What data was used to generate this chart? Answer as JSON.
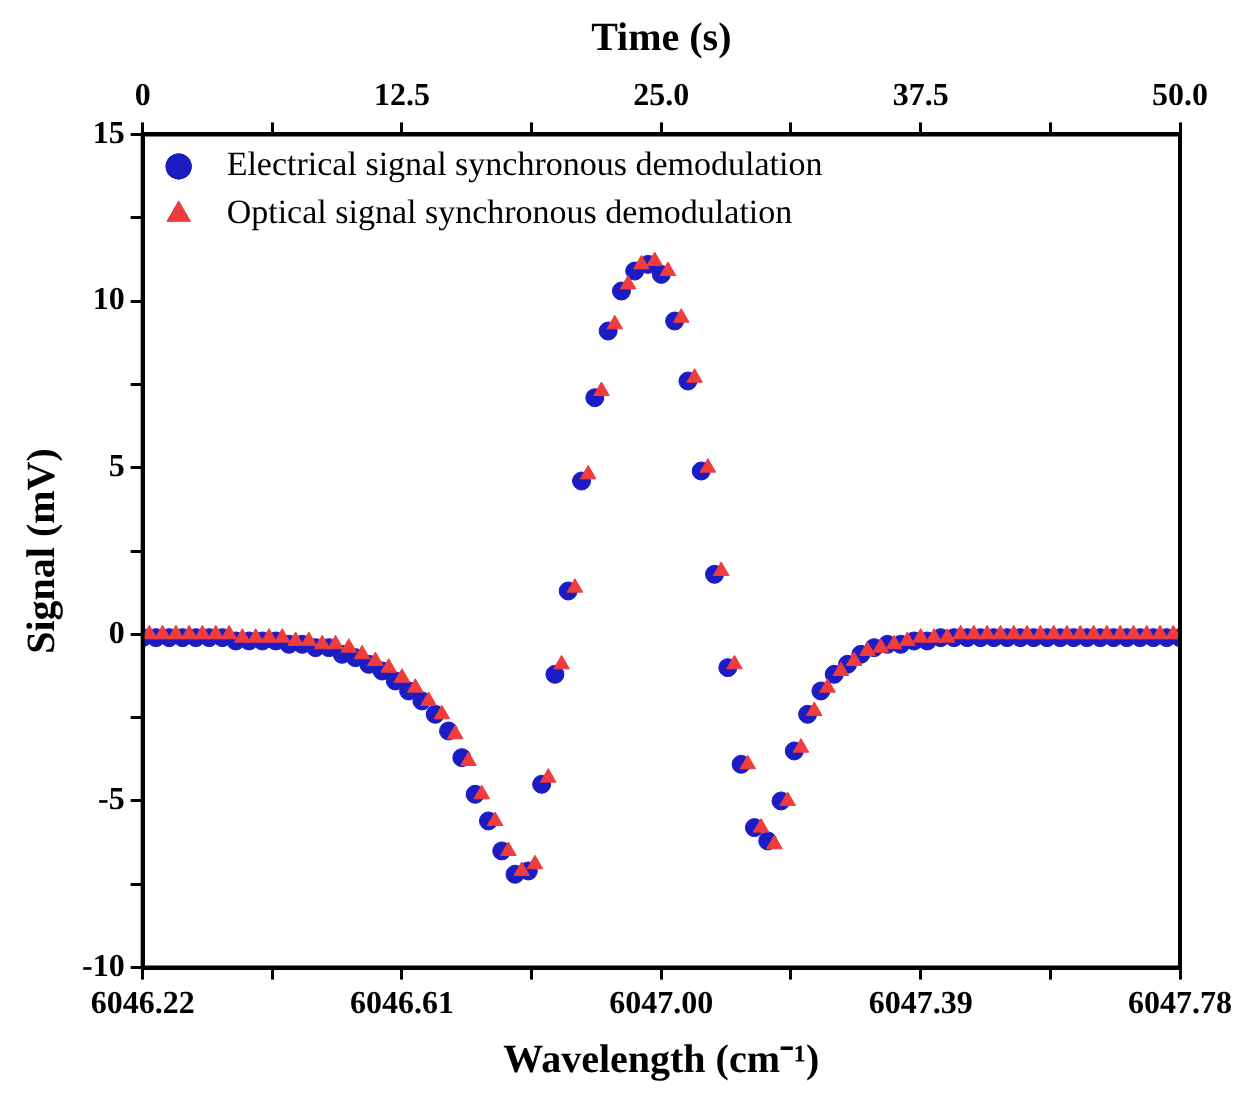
{
  "chart_data": {
    "type": "scatter",
    "xlabel": "Wavelength (cm⁻¹)",
    "ylabel": "Signal (mV)",
    "x2label": "Time (s)",
    "xlim": [
      6046.22,
      6047.78
    ],
    "xticks": [
      6046.22,
      {
        "value": 6046.415,
        "label": null
      },
      6046.61,
      {
        "value": 6046.805,
        "label": null
      },
      {
        "value": 6047,
        "label": "6047.00"
      },
      {
        "value": 6047.195,
        "label": null
      },
      6047.39,
      {
        "value": 6047.585,
        "label": null
      },
      6047.78
    ],
    "x2lim": [
      0,
      50
    ],
    "x2ticks": [
      0,
      {
        "value": 6.25,
        "label": null
      },
      12.5,
      {
        "value": 18.75,
        "label": null
      },
      {
        "value": 25,
        "label": "25.0"
      },
      {
        "value": 31.25,
        "label": null
      },
      37.5,
      {
        "value": 43.75,
        "label": null
      },
      {
        "value": 50,
        "label": "50.0"
      }
    ],
    "ylim": [
      -10,
      15
    ],
    "yticks": [
      -10,
      {
        "value": -7.5,
        "label": null
      },
      -5,
      {
        "value": -2.5,
        "label": null
      },
      0,
      {
        "value": 2.5,
        "label": null
      },
      5,
      {
        "value": 7.5,
        "label": null
      },
      10,
      {
        "value": 12.5,
        "label": null
      },
      15
    ],
    "grid": false,
    "legend": "top left",
    "series": [
      {
        "name": "Electrical signal synchronous demodulation",
        "color": "#1c1cc4",
        "marker": "circle",
        "x": [
          6046.22,
          6046.24,
          6046.26,
          6046.28,
          6046.3,
          6046.32,
          6046.34,
          6046.36,
          6046.38,
          6046.4,
          6046.42,
          6046.44,
          6046.46,
          6046.48,
          6046.5,
          6046.52,
          6046.54,
          6046.56,
          6046.58,
          6046.6,
          6046.62,
          6046.64,
          6046.66,
          6046.68,
          6046.7,
          6046.72,
          6046.74,
          6046.76,
          6046.78,
          6046.8,
          6046.82,
          6046.84,
          6046.86,
          6046.88,
          6046.9,
          6046.92,
          6046.94,
          6046.96,
          6046.98,
          6047,
          6047.02,
          6047.04,
          6047.06,
          6047.08,
          6047.1,
          6047.12,
          6047.14,
          6047.16,
          6047.18,
          6047.2,
          6047.22,
          6047.24,
          6047.26,
          6047.28,
          6047.3,
          6047.32,
          6047.34,
          6047.36,
          6047.38,
          6047.4,
          6047.42,
          6047.44,
          6047.46,
          6047.48,
          6047.5,
          6047.52,
          6047.54,
          6047.56,
          6047.58,
          6047.6,
          6047.62,
          6047.64,
          6047.66,
          6047.68,
          6047.7,
          6047.72,
          6047.74,
          6047.76,
          6047.78
        ],
        "values": [
          -0.1,
          -0.1,
          -0.1,
          -0.1,
          -0.1,
          -0.1,
          -0.1,
          -0.2,
          -0.2,
          -0.2,
          -0.2,
          -0.3,
          -0.3,
          -0.4,
          -0.4,
          -0.6,
          -0.7,
          -0.9,
          -1.1,
          -1.4,
          -1.7,
          -2.0,
          -2.4,
          -2.9,
          -3.7,
          -4.8,
          -5.6,
          -6.5,
          -7.2,
          -7.1,
          -4.5,
          -1.2,
          1.3,
          4.6,
          7.1,
          9.1,
          10.3,
          10.9,
          11.1,
          10.8,
          9.4,
          7.6,
          4.9,
          1.8,
          -1.0,
          -3.9,
          -5.8,
          -6.2,
          -5.0,
          -3.5,
          -2.4,
          -1.7,
          -1.2,
          -0.9,
          -0.6,
          -0.4,
          -0.3,
          -0.3,
          -0.2,
          -0.2,
          -0.1,
          -0.1,
          -0.1,
          -0.1,
          -0.1,
          -0.1,
          -0.1,
          -0.1,
          -0.1,
          -0.1,
          -0.1,
          -0.1,
          -0.1,
          -0.1,
          -0.1,
          -0.1,
          -0.1,
          -0.1,
          -0.1
        ]
      },
      {
        "name": "Optical signal synchronous demodulation",
        "color": "#f03c3c",
        "marker": "triangle",
        "x": [
          6046.23,
          6046.25,
          6046.27,
          6046.29,
          6046.31,
          6046.33,
          6046.35,
          6046.37,
          6046.39,
          6046.41,
          6046.43,
          6046.45,
          6046.47,
          6046.49,
          6046.51,
          6046.53,
          6046.55,
          6046.57,
          6046.59,
          6046.61,
          6046.63,
          6046.65,
          6046.67,
          6046.69,
          6046.71,
          6046.73,
          6046.75,
          6046.77,
          6046.79,
          6046.81,
          6046.83,
          6046.85,
          6046.87,
          6046.89,
          6046.91,
          6046.93,
          6046.95,
          6046.97,
          6046.99,
          6047.01,
          6047.03,
          6047.05,
          6047.07,
          6047.09,
          6047.11,
          6047.13,
          6047.15,
          6047.17,
          6047.19,
          6047.21,
          6047.23,
          6047.25,
          6047.27,
          6047.29,
          6047.31,
          6047.33,
          6047.35,
          6047.37,
          6047.39,
          6047.41,
          6047.43,
          6047.45,
          6047.47,
          6047.49,
          6047.51,
          6047.53,
          6047.55,
          6047.57,
          6047.59,
          6047.61,
          6047.63,
          6047.65,
          6047.67,
          6047.69,
          6047.71,
          6047.73,
          6047.75,
          6047.77
        ],
        "values": [
          0.0,
          0.0,
          0.0,
          0.0,
          0.0,
          0.0,
          0.0,
          -0.1,
          -0.1,
          -0.1,
          -0.1,
          -0.2,
          -0.2,
          -0.3,
          -0.3,
          -0.4,
          -0.6,
          -0.8,
          -1.0,
          -1.3,
          -1.6,
          -2.0,
          -2.4,
          -3.0,
          -3.8,
          -4.8,
          -5.6,
          -6.5,
          -7.1,
          -6.9,
          -4.3,
          -0.9,
          1.4,
          4.8,
          7.3,
          9.3,
          10.5,
          11.1,
          11.2,
          10.9,
          9.5,
          7.7,
          5.0,
          1.9,
          -0.9,
          -3.9,
          -5.8,
          -6.3,
          -5.0,
          -3.4,
          -2.3,
          -1.6,
          -1.1,
          -0.8,
          -0.5,
          -0.4,
          -0.3,
          -0.2,
          -0.1,
          -0.1,
          -0.1,
          0.0,
          0.0,
          0.0,
          0.0,
          0.0,
          0.0,
          0.0,
          0.0,
          0.0,
          0.0,
          0.0,
          0.0,
          0.0,
          0.0,
          0.0,
          0.0,
          0.0
        ]
      }
    ]
  }
}
